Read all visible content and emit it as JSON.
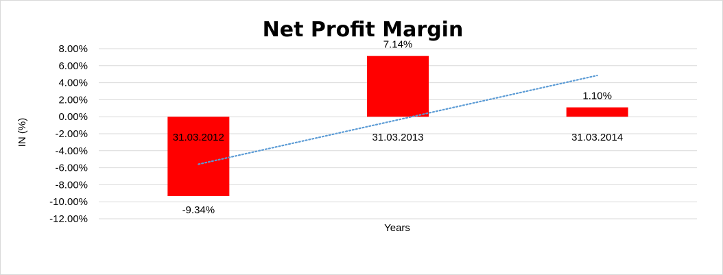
{
  "chart_data": {
    "type": "bar",
    "title": "Net Profit Margin",
    "xlabel": "Years",
    "ylabel": "IN (%)",
    "categories": [
      "31.03.2012",
      "31.03.2013",
      "31.03.2014"
    ],
    "values": [
      -9.34,
      7.14,
      1.1
    ],
    "data_labels": [
      "-9.34%",
      "7.14%",
      "1.10%"
    ],
    "ylim": [
      -12,
      8
    ],
    "y_ticks": [
      8,
      6,
      4,
      2,
      0,
      -2,
      -4,
      -6,
      -8,
      -10,
      -12
    ],
    "y_tick_labels": [
      "8.00%",
      "6.00%",
      "4.00%",
      "2.00%",
      "0.00%",
      "-2.00%",
      "-4.00%",
      "-6.00%",
      "-8.00%",
      "-10.00%",
      "-12.00%"
    ],
    "trendline": {
      "type": "linear",
      "dotted": true
    },
    "grid": true,
    "legend": "none",
    "colors": {
      "bar": "#ff0000",
      "trendline": "#5b9bd5",
      "grid": "#d9d9d9"
    }
  }
}
